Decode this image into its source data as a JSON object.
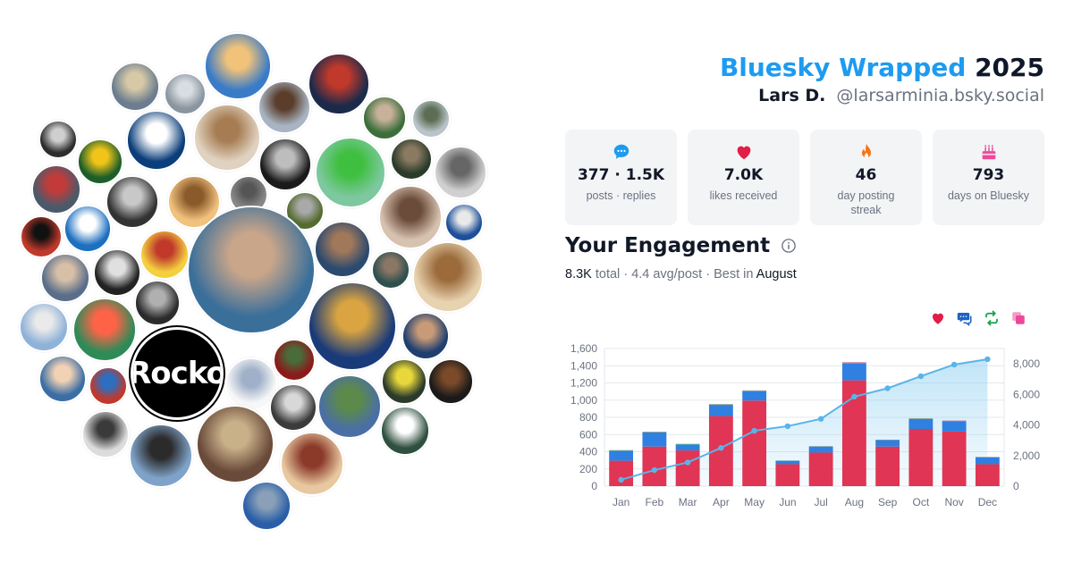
{
  "header": {
    "brand": "Bluesky Wrapped",
    "year": "2025",
    "name": "Lars D.",
    "handle": "@larsarminia.bsky.social"
  },
  "stats": [
    {
      "icon": "chat-bubble-icon",
      "value": "377 · 1.5K",
      "label": "posts · replies",
      "color": "#1d9bf0"
    },
    {
      "icon": "heart-icon",
      "value": "7.0K",
      "label": "likes received",
      "color": "#e11d48"
    },
    {
      "icon": "flame-icon",
      "value": "46",
      "label": "day posting streak",
      "color": "#f97316"
    },
    {
      "icon": "cake-icon",
      "value": "793",
      "label": "days on Bluesky",
      "color": "#ec4899"
    }
  ],
  "engagement": {
    "title": "Your Engagement",
    "total": "8.3K",
    "total_word": "total",
    "avg": "4.4 avg/post",
    "best_prefix": "Best in",
    "best_month": "August"
  },
  "legend_icons": [
    {
      "icon": "heart-icon",
      "color": "#e11d48"
    },
    {
      "icon": "reply-icon",
      "color": "#1e63c4"
    },
    {
      "icon": "repost-icon",
      "color": "#16a34a"
    },
    {
      "icon": "quote-icon",
      "color": "#ec4899"
    }
  ],
  "avatar_cluster": {
    "rocko_label": "Rocko"
  },
  "chart_data": {
    "type": "bar",
    "categories": [
      "Jan",
      "Feb",
      "Mar",
      "Apr",
      "May",
      "Jun",
      "Jul",
      "Aug",
      "Sep",
      "Oct",
      "Nov",
      "Dec"
    ],
    "stacked": true,
    "series": [
      {
        "values": [
          295,
          460,
          415,
          815,
          995,
          255,
          390,
          1230,
          460,
          665,
          635,
          255
        ],
        "color": "#e03554"
      },
      {
        "values": [
          115,
          165,
          70,
          130,
          110,
          40,
          70,
          195,
          75,
          115,
          120,
          80
        ],
        "color": "#2f80e0"
      },
      {
        "values": [
          5,
          5,
          5,
          5,
          5,
          2,
          3,
          10,
          3,
          5,
          5,
          3
        ],
        "color": "#22c55e"
      },
      {
        "values": [
          3,
          3,
          2,
          3,
          3,
          1,
          2,
          6,
          2,
          3,
          3,
          2
        ],
        "color": "#ec4899"
      }
    ],
    "cumulative": {
      "values": [
        420,
        1050,
        1550,
        2500,
        3620,
        3920,
        4400,
        5850,
        6400,
        7190,
        7950,
        8300
      ],
      "color": "#5ab4e8",
      "axis": "right"
    },
    "ylim_left": [
      0,
      1600
    ],
    "yticks_left": [
      "0",
      "200",
      "400",
      "600",
      "800",
      "1,000",
      "1,200",
      "1,400",
      "1,600"
    ],
    "ylim_right": [
      0,
      9000
    ],
    "yticks_right": [
      "0",
      "2,000",
      "4,000",
      "6,000",
      "8,000"
    ],
    "grid": true
  }
}
